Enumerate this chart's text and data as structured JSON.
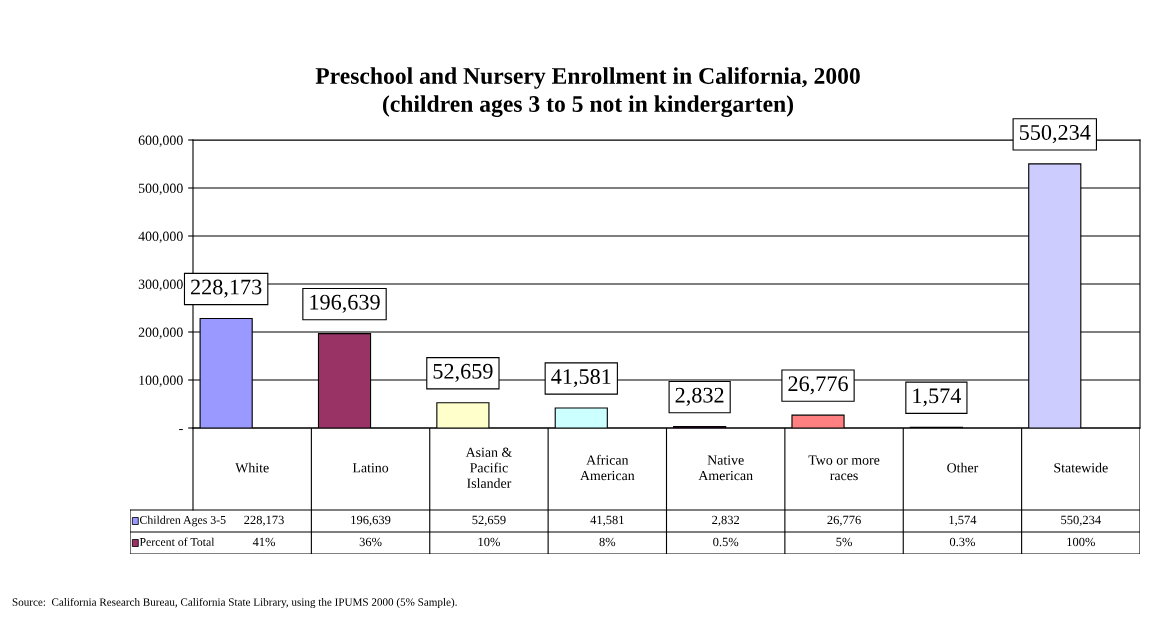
{
  "chart_data": {
    "type": "bar",
    "title": "Preschool and Nursery Enrollment in California, 2000\n(children ages 3 to 5 not in kindergarten)",
    "categories": [
      "White",
      "Latino",
      "Asian & Pacific Islander",
      "African American",
      "Native American",
      "Two or more races",
      "Other",
      "Statewide"
    ],
    "series": [
      {
        "name": "Children Ages 3-5",
        "color": "#9999ff",
        "colors": [
          "#9999ff",
          "#993366",
          "#ffffcc",
          "#ccffff",
          "#660066",
          "#ff8080",
          "#0066cc",
          "#ccccff"
        ],
        "values": [
          228173,
          196639,
          52659,
          41581,
          2832,
          26776,
          1574,
          550234
        ],
        "value_labels": [
          "228,173",
          "196,639",
          "52,659",
          "41,581",
          "2,832",
          "26,776",
          "1,574",
          "550,234"
        ]
      },
      {
        "name": "Percent of Total",
        "color": "#993366",
        "values": [
          41,
          36,
          10,
          8,
          0.5,
          5,
          0.3,
          100
        ],
        "value_labels": [
          "41%",
          "36%",
          "10%",
          "8%",
          "0.5%",
          "5%",
          "0.3%",
          "100%"
        ]
      }
    ],
    "ylim": [
      0,
      600000
    ],
    "yticks": [
      {
        "value": 0,
        "label": "-"
      },
      {
        "value": 100000,
        "label": "100,000"
      },
      {
        "value": 200000,
        "label": "200,000"
      },
      {
        "value": 300000,
        "label": "300,000"
      },
      {
        "value": 400000,
        "label": "400,000"
      },
      {
        "value": 500000,
        "label": "500,000"
      },
      {
        "value": 600000,
        "label": "600,000"
      }
    ],
    "grid": "y",
    "legend": "bottom left",
    "data_labels": true,
    "annotations": [
      "Source:  California Research Bureau, California State Library, using the IPUMS 2000 (5% Sample)."
    ]
  }
}
